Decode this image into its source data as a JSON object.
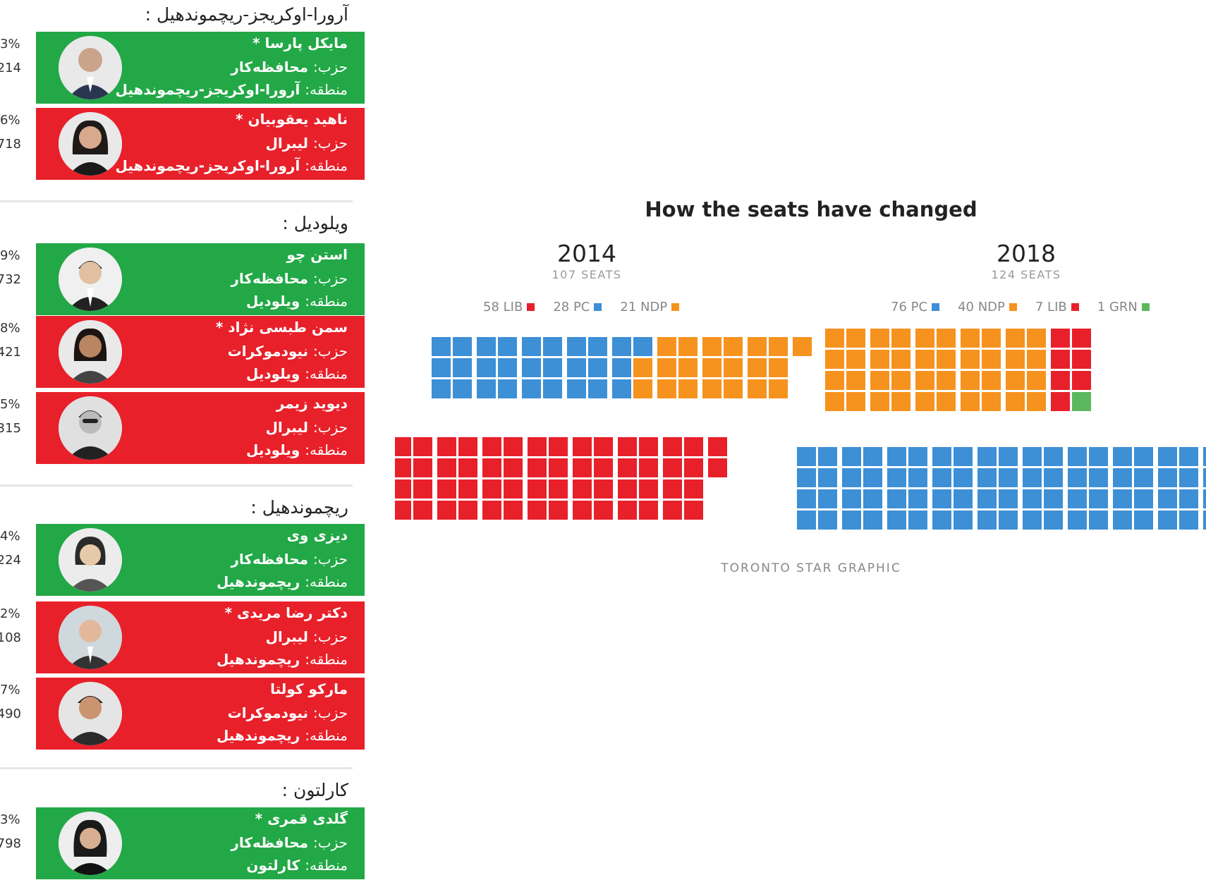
{
  "colors": {
    "win": "#22a846",
    "lose": "#e8202a",
    "lib": "#e8202a",
    "pc": "#3d8fd6",
    "ndp": "#f6921e",
    "grn": "#5cb85c"
  },
  "labels": {
    "party": "حزب:",
    "region": "منطقه:"
  },
  "sections": [
    {
      "title": "آرورا-اوکریجز-ریچموندهیل :",
      "candidates": [
        {
          "name": "مایکل پارسا *",
          "party": "محافظه‌کار",
          "region": "آرورا-اوکریجز-ریچموندهیل",
          "status": "win",
          "pct": "3%",
          "votes": "214"
        },
        {
          "name": "ناهید یعقوبیان *",
          "party": "لیبرال",
          "region": "آرورا-اوکریجز-ریچموندهیل",
          "status": "lose",
          "pct": "6%",
          "votes": "718"
        }
      ]
    },
    {
      "title": "ویلودیل :",
      "candidates": [
        {
          "name": "استن چو",
          "party": "محافظه‌کار",
          "region": "ویلودیل",
          "status": "win",
          "pct": "9%",
          "votes": "732"
        },
        {
          "name": "سمن طبسی نژاد *",
          "party": "نیودموکرات",
          "region": "ویلودیل",
          "status": "lose",
          "pct": "8%",
          "votes": "421"
        },
        {
          "name": "دیوید زیمر",
          "party": "لیبرال",
          "region": "ویلودیل",
          "status": "lose",
          "pct": "5%",
          "votes": "315"
        }
      ]
    },
    {
      "title": "ریچموندهیل :",
      "candidates": [
        {
          "name": "دیزی وی",
          "party": "محافظه‌کار",
          "region": "ریچموندهیل",
          "status": "win",
          "pct": "4%",
          "votes": "224"
        },
        {
          "name": "دکتر رضا مریدی *",
          "party": "لیبرال",
          "region": "ریچموندهیل",
          "status": "lose",
          "pct": "2%",
          "votes": "108"
        },
        {
          "name": "مارکو کولتا",
          "party": "نیودموکرات",
          "region": "ریچموندهیل",
          "status": "lose",
          "pct": "7%",
          "votes": "490"
        }
      ]
    },
    {
      "title": "کارلتون :",
      "candidates": [
        {
          "name": "گلدی قمری *",
          "party": "محافظه‌کار",
          "region": "کارلتون",
          "status": "win",
          "pct": "3%",
          "votes": "798"
        }
      ]
    }
  ],
  "chart_data": {
    "type": "waffle",
    "title": "How the seats have changed",
    "credit": "TORONTO STAR GRAPHIC",
    "panels": [
      {
        "year": "2014",
        "seats_label": "107 SEATS",
        "total": 107,
        "series": [
          {
            "name": "LIB",
            "legend": "58 LIB",
            "value": 58,
            "color": "#e8202a"
          },
          {
            "name": "PC",
            "legend": "28 PC",
            "value": 28,
            "color": "#3d8fd6"
          },
          {
            "name": "NDP",
            "legend": "21 NDP",
            "value": 21,
            "color": "#f6921e"
          }
        ]
      },
      {
        "year": "2018",
        "seats_label": "124 SEATS",
        "total": 124,
        "series": [
          {
            "name": "PC",
            "legend": "76 PC",
            "value": 76,
            "color": "#3d8fd6"
          },
          {
            "name": "NDP",
            "legend": "40 NDP",
            "value": 40,
            "color": "#f6921e"
          },
          {
            "name": "LIB",
            "legend": "7 LIB",
            "value": 7,
            "color": "#e8202a"
          },
          {
            "name": "GRN",
            "legend": "1 GRN",
            "value": 1,
            "color": "#5cb85c"
          }
        ]
      }
    ]
  }
}
